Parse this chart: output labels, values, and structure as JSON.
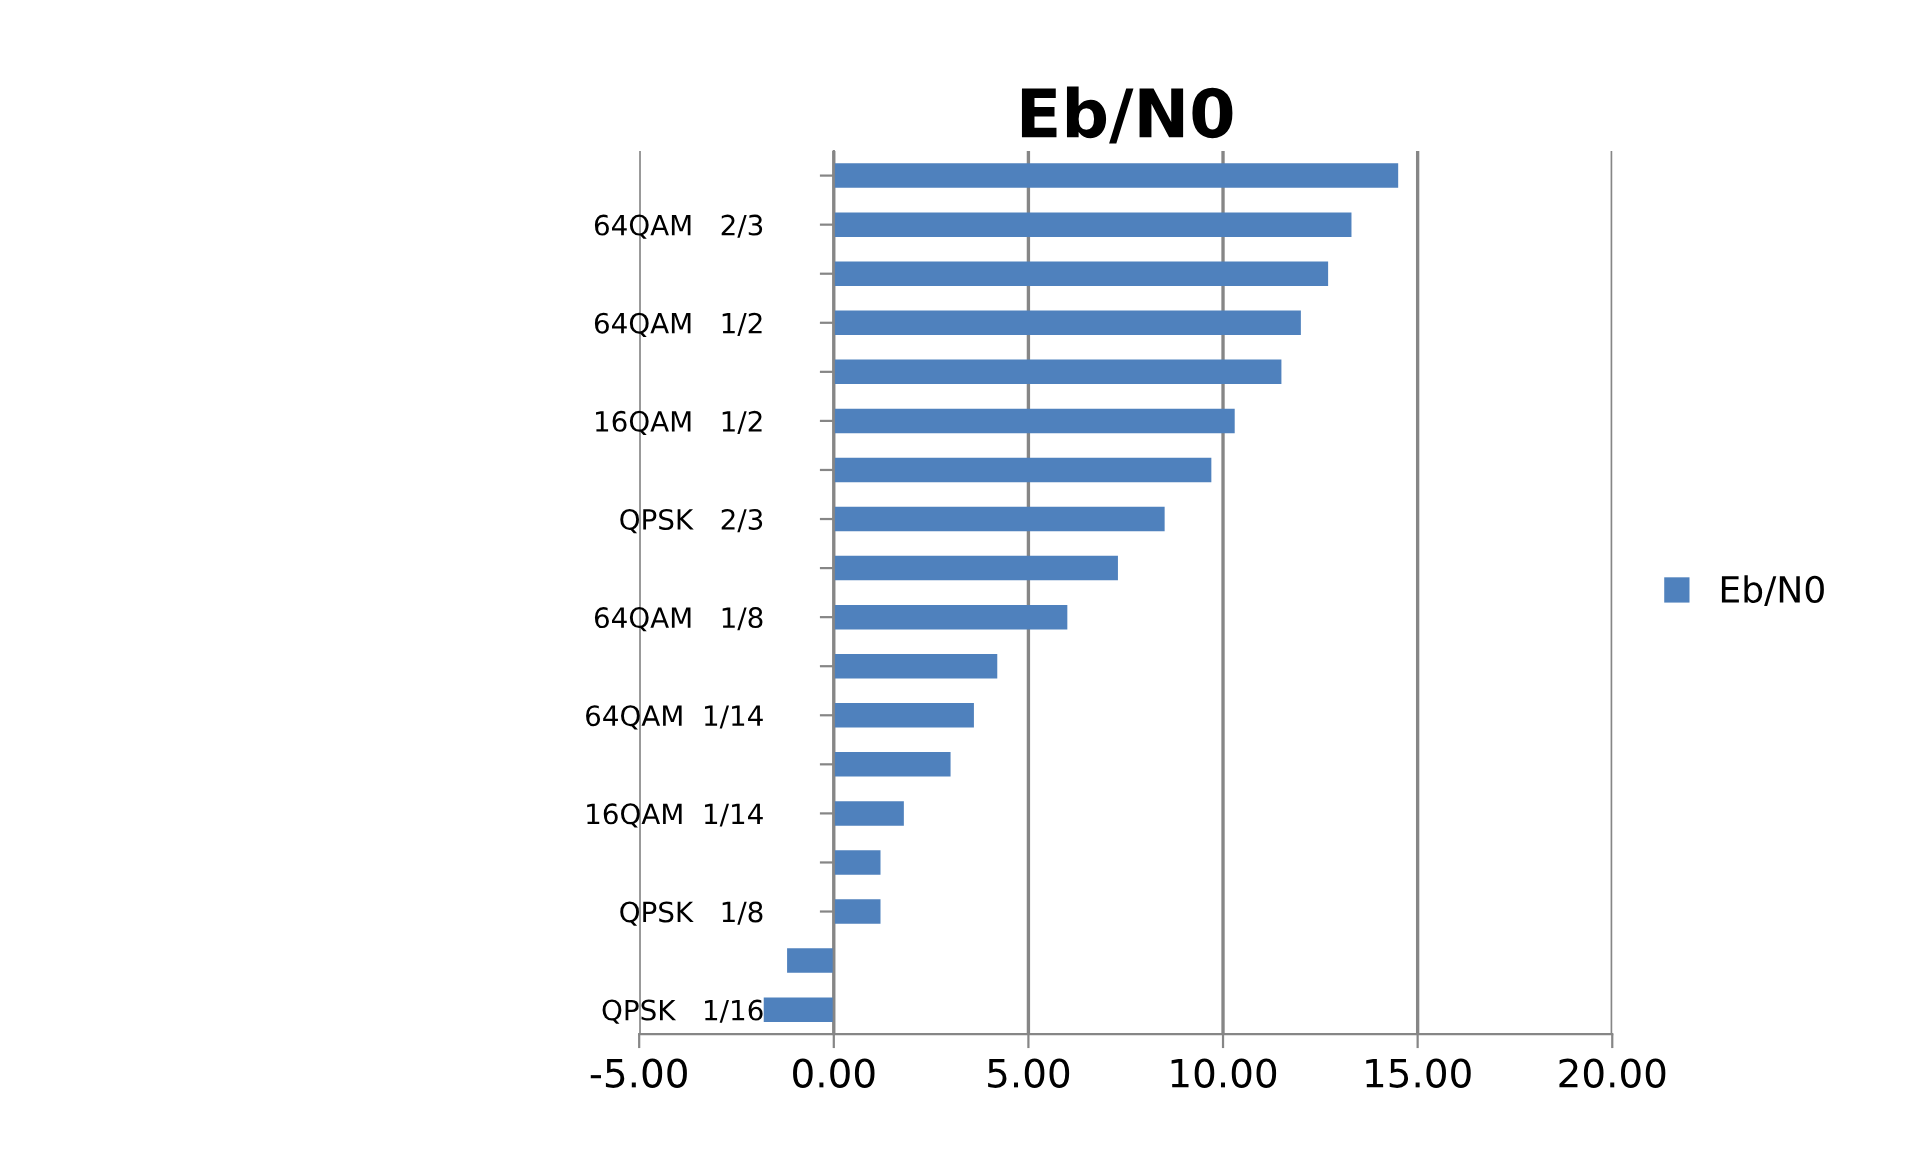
{
  "chart_data": {
    "type": "bar",
    "orientation": "horizontal",
    "title": "Eb/N0",
    "categories": [
      null,
      "64QAM   2/3",
      null,
      "64QAM   1/2",
      null,
      "16QAM   1/2",
      null,
      "QPSK   2/3",
      null,
      "64QAM   1/8",
      null,
      "64QAM  1/14",
      null,
      "16QAM  1/14",
      null,
      "QPSK   1/8",
      null,
      "QPSK   1/16"
    ],
    "series": [
      {
        "name": "Eb/N0",
        "color": "#4f81bd",
        "values": [
          14.5,
          13.3,
          12.7,
          12.0,
          11.5,
          10.3,
          9.7,
          8.5,
          7.3,
          6.0,
          4.2,
          3.6,
          3.0,
          1.8,
          1.2,
          1.2,
          -1.2,
          -1.8
        ]
      }
    ],
    "xlim": [
      -5,
      20
    ],
    "xticks": [
      {
        "value": -5,
        "label": "-5.00"
      },
      {
        "value": 0,
        "label": "0.00"
      },
      {
        "value": 5,
        "label": "5.00"
      },
      {
        "value": 10,
        "label": "10.00"
      },
      {
        "value": 15,
        "label": "15.00"
      },
      {
        "value": 20,
        "label": "20.00"
      }
    ],
    "grid": "x",
    "legend": "right"
  }
}
